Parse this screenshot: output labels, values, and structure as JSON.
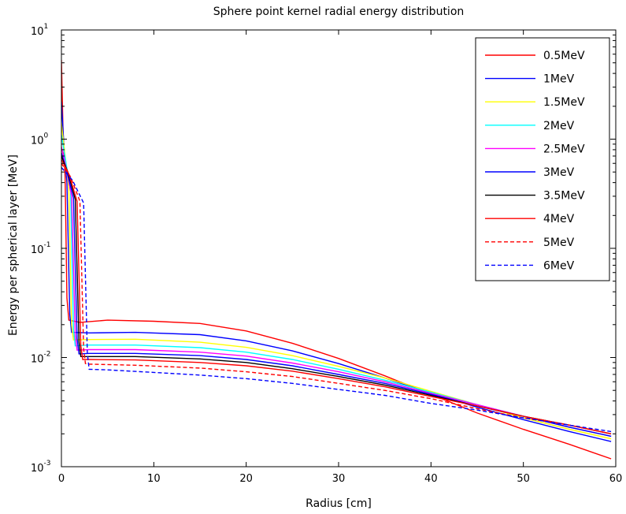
{
  "chart_data": {
    "type": "line",
    "title": "Sphere point kernel radial energy distribution",
    "xlabel": "Radius  [cm]",
    "ylabel": "Energy per spherical layer [MeV]",
    "xlim": [
      0,
      60
    ],
    "ylim": [
      0.001,
      10
    ],
    "yscale": "log",
    "grid": false,
    "legend": "top-right",
    "x_ticks": [
      "0",
      "10",
      "20",
      "30",
      "40",
      "50",
      "60"
    ],
    "y_ticks": [
      {
        "value": 0.001,
        "base": "10",
        "exp": "-3"
      },
      {
        "value": 0.01,
        "base": "10",
        "exp": "-2"
      },
      {
        "value": 0.1,
        "base": "10",
        "exp": "-1"
      },
      {
        "value": 1,
        "base": "10",
        "exp": "0"
      },
      {
        "value": 10,
        "base": "10",
        "exp": "1"
      }
    ],
    "series": [
      {
        "name": "0.5MeV",
        "color": "#ff0000",
        "dash": false,
        "points": [
          [
            0,
            5.3
          ],
          [
            0.2,
            1.0
          ],
          [
            0.4,
            0.45
          ],
          [
            0.6,
            0.035
          ],
          [
            0.8,
            0.022
          ],
          [
            2,
            0.021
          ],
          [
            5,
            0.022
          ],
          [
            10,
            0.0215
          ],
          [
            15,
            0.0205
          ],
          [
            20,
            0.0175
          ],
          [
            25,
            0.0135
          ],
          [
            30,
            0.0098
          ],
          [
            35,
            0.0068
          ],
          [
            40,
            0.0046
          ],
          [
            45,
            0.0031
          ],
          [
            50,
            0.0022
          ],
          [
            55,
            0.0016
          ],
          [
            59.5,
            0.00118
          ]
        ]
      },
      {
        "name": "1MeV",
        "color": "#0000ff",
        "dash": false,
        "points": [
          [
            0,
            2.2
          ],
          [
            0.3,
            0.8
          ],
          [
            0.6,
            0.4
          ],
          [
            0.9,
            0.025
          ],
          [
            1.1,
            0.017
          ],
          [
            3,
            0.0168
          ],
          [
            8,
            0.017
          ],
          [
            15,
            0.0162
          ],
          [
            20,
            0.0142
          ],
          [
            25,
            0.0115
          ],
          [
            30,
            0.0088
          ],
          [
            35,
            0.0065
          ],
          [
            40,
            0.0047
          ],
          [
            45,
            0.0035
          ],
          [
            50,
            0.0027
          ],
          [
            55,
            0.0021
          ],
          [
            59.5,
            0.0017
          ]
        ]
      },
      {
        "name": "1.5MeV",
        "color": "#ffff00",
        "dash": false,
        "points": [
          [
            0,
            1.4
          ],
          [
            0.4,
            0.7
          ],
          [
            0.8,
            0.35
          ],
          [
            1.1,
            0.02
          ],
          [
            1.3,
            0.0145
          ],
          [
            3,
            0.0146
          ],
          [
            8,
            0.0147
          ],
          [
            15,
            0.0138
          ],
          [
            20,
            0.0124
          ],
          [
            25,
            0.0104
          ],
          [
            30,
            0.0083
          ],
          [
            35,
            0.0065
          ],
          [
            40,
            0.0049
          ],
          [
            45,
            0.0037
          ],
          [
            50,
            0.0028
          ],
          [
            55,
            0.0022
          ],
          [
            59.5,
            0.0018
          ]
        ]
      },
      {
        "name": "2MeV",
        "color": "#00ffff",
        "dash": false,
        "points": [
          [
            0,
            1.1
          ],
          [
            0.5,
            0.6
          ],
          [
            1.0,
            0.33
          ],
          [
            1.3,
            0.018
          ],
          [
            1.5,
            0.0128
          ],
          [
            3,
            0.013
          ],
          [
            8,
            0.013
          ],
          [
            15,
            0.0123
          ],
          [
            20,
            0.0112
          ],
          [
            25,
            0.0096
          ],
          [
            30,
            0.0078
          ],
          [
            35,
            0.0062
          ],
          [
            40,
            0.0048
          ],
          [
            45,
            0.0037
          ],
          [
            50,
            0.0029
          ],
          [
            55,
            0.0023
          ],
          [
            59.5,
            0.0019
          ]
        ]
      },
      {
        "name": "2.5MeV",
        "color": "#ff00ff",
        "dash": false,
        "points": [
          [
            0,
            0.85
          ],
          [
            0.5,
            0.55
          ],
          [
            1.1,
            0.3
          ],
          [
            1.5,
            0.016
          ],
          [
            1.7,
            0.0117
          ],
          [
            3,
            0.0118
          ],
          [
            8,
            0.0118
          ],
          [
            15,
            0.0112
          ],
          [
            20,
            0.0103
          ],
          [
            25,
            0.0089
          ],
          [
            30,
            0.0074
          ],
          [
            35,
            0.006
          ],
          [
            40,
            0.0047
          ],
          [
            45,
            0.0037
          ],
          [
            50,
            0.0029
          ],
          [
            55,
            0.0023
          ],
          [
            59.5,
            0.0019
          ]
        ]
      },
      {
        "name": "3MeV",
        "color": "#0000ff",
        "dash": false,
        "points": [
          [
            0,
            0.75
          ],
          [
            0.6,
            0.5
          ],
          [
            1.3,
            0.29
          ],
          [
            1.7,
            0.015
          ],
          [
            1.9,
            0.0108
          ],
          [
            3,
            0.0109
          ],
          [
            8,
            0.0109
          ],
          [
            15,
            0.0104
          ],
          [
            20,
            0.0096
          ],
          [
            25,
            0.0084
          ],
          [
            30,
            0.007
          ],
          [
            35,
            0.0058
          ],
          [
            40,
            0.0046
          ],
          [
            45,
            0.0036
          ],
          [
            50,
            0.0029
          ],
          [
            55,
            0.0023
          ],
          [
            59.5,
            0.0019
          ]
        ]
      },
      {
        "name": "3.5MeV",
        "color": "#000000",
        "dash": false,
        "points": [
          [
            0,
            0.7
          ],
          [
            0.7,
            0.5
          ],
          [
            1.5,
            0.28
          ],
          [
            1.9,
            0.014
          ],
          [
            2.1,
            0.0102
          ],
          [
            3,
            0.0102
          ],
          [
            8,
            0.0102
          ],
          [
            15,
            0.0097
          ],
          [
            20,
            0.009
          ],
          [
            25,
            0.0079
          ],
          [
            30,
            0.0067
          ],
          [
            35,
            0.0056
          ],
          [
            40,
            0.0045
          ],
          [
            45,
            0.0036
          ],
          [
            50,
            0.0029
          ],
          [
            55,
            0.0024
          ],
          [
            59.5,
            0.002
          ]
        ]
      },
      {
        "name": "4MeV",
        "color": "#ff0000",
        "dash": false,
        "points": [
          [
            0,
            0.65
          ],
          [
            0.8,
            0.48
          ],
          [
            1.7,
            0.27
          ],
          [
            2.1,
            0.013
          ],
          [
            2.3,
            0.0096
          ],
          [
            3,
            0.0096
          ],
          [
            8,
            0.0095
          ],
          [
            15,
            0.009
          ],
          [
            20,
            0.0084
          ],
          [
            25,
            0.0075
          ],
          [
            30,
            0.0064
          ],
          [
            35,
            0.0054
          ],
          [
            40,
            0.0044
          ],
          [
            45,
            0.0036
          ],
          [
            50,
            0.0029
          ],
          [
            55,
            0.0024
          ],
          [
            59.5,
            0.002
          ]
        ]
      },
      {
        "name": "5MeV",
        "color": "#ff0000",
        "dash": true,
        "points": [
          [
            0,
            0.6
          ],
          [
            1.0,
            0.45
          ],
          [
            2.0,
            0.27
          ],
          [
            2.4,
            0.012
          ],
          [
            2.6,
            0.0088
          ],
          [
            3,
            0.0087
          ],
          [
            8,
            0.0085
          ],
          [
            15,
            0.008
          ],
          [
            20,
            0.0074
          ],
          [
            25,
            0.0067
          ],
          [
            30,
            0.0058
          ],
          [
            35,
            0.005
          ],
          [
            40,
            0.0042
          ],
          [
            45,
            0.0034
          ],
          [
            50,
            0.0028
          ],
          [
            55,
            0.0024
          ],
          [
            59.5,
            0.002
          ]
        ]
      },
      {
        "name": "6MeV",
        "color": "#0000ff",
        "dash": true,
        "points": [
          [
            0,
            0.55
          ],
          [
            1.2,
            0.42
          ],
          [
            2.4,
            0.26
          ],
          [
            2.8,
            0.011
          ],
          [
            3.0,
            0.0078
          ],
          [
            5,
            0.0077
          ],
          [
            10,
            0.0073
          ],
          [
            15,
            0.0069
          ],
          [
            20,
            0.0064
          ],
          [
            25,
            0.0058
          ],
          [
            30,
            0.0051
          ],
          [
            35,
            0.0045
          ],
          [
            40,
            0.0038
          ],
          [
            45,
            0.0033
          ],
          [
            50,
            0.0028
          ],
          [
            55,
            0.0024
          ],
          [
            59.5,
            0.0021
          ]
        ]
      }
    ]
  }
}
